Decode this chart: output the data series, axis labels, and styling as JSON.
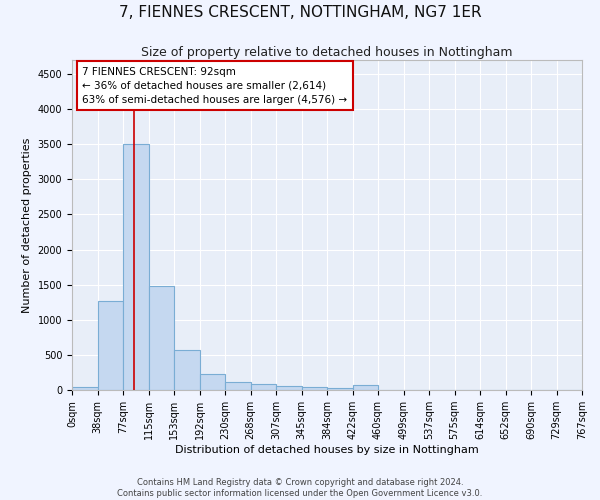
{
  "title": "7, FIENNES CRESCENT, NOTTINGHAM, NG7 1ER",
  "subtitle": "Size of property relative to detached houses in Nottingham",
  "xlabel": "Distribution of detached houses by size in Nottingham",
  "ylabel": "Number of detached properties",
  "bar_color": "#c5d8f0",
  "bar_edge_color": "#7aadd4",
  "property_line_color": "#cc0000",
  "property_sqm": 92,
  "bin_width": 38,
  "num_bins": 20,
  "bar_values": [
    40,
    1270,
    3500,
    1475,
    575,
    235,
    110,
    80,
    55,
    45,
    30,
    70,
    0,
    0,
    0,
    0,
    0,
    0,
    0,
    0
  ],
  "ylim": [
    0,
    4700
  ],
  "yticks": [
    0,
    500,
    1000,
    1500,
    2000,
    2500,
    3000,
    3500,
    4000,
    4500
  ],
  "annotation_text": "7 FIENNES CRESCENT: 92sqm\n← 36% of detached houses are smaller (2,614)\n63% of semi-detached houses are larger (4,576) →",
  "footer_line1": "Contains HM Land Registry data © Crown copyright and database right 2024.",
  "footer_line2": "Contains public sector information licensed under the Open Government Licence v3.0.",
  "background_color": "#f0f4ff",
  "plot_background_color": "#e8eef8",
  "grid_color": "#ffffff",
  "title_fontsize": 11,
  "subtitle_fontsize": 9,
  "axis_label_fontsize": 8,
  "tick_fontsize": 7,
  "annotation_fontsize": 7.5,
  "footer_fontsize": 6,
  "tick_labels": [
    "0sqm",
    "38sqm",
    "77sqm",
    "115sqm",
    "153sqm",
    "192sqm",
    "230sqm",
    "268sqm",
    "307sqm",
    "345sqm",
    "384sqm",
    "422sqm",
    "460sqm",
    "499sqm",
    "537sqm",
    "575sqm",
    "614sqm",
    "652sqm",
    "690sqm",
    "729sqm",
    "767sqm"
  ]
}
